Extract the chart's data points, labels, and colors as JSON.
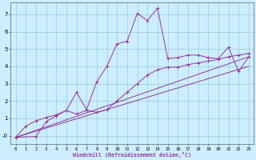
{
  "xlabel": "Windchill (Refroidissement éolien,°C)",
  "background_color": "#cceeff",
  "grid_color": "#99cccc",
  "line_color": "#993399",
  "xlim": [
    -0.5,
    23.5
  ],
  "ylim": [
    -0.5,
    7.7
  ],
  "xticks": [
    0,
    1,
    2,
    3,
    4,
    5,
    6,
    7,
    8,
    9,
    10,
    11,
    12,
    13,
    14,
    15,
    16,
    17,
    18,
    19,
    20,
    21,
    22,
    23
  ],
  "yticks": [
    0,
    1,
    2,
    3,
    4,
    5,
    6,
    7
  ],
  "ytick_labels": [
    "-0",
    "1",
    "2",
    "3",
    "4",
    "5",
    "6",
    "7"
  ],
  "line1_x": [
    0,
    1,
    2,
    3,
    4,
    5,
    6,
    7,
    8,
    9,
    10,
    11,
    12,
    13,
    14,
    15,
    16,
    17,
    18,
    19,
    20,
    21,
    22,
    23
  ],
  "line1_y": [
    -0.1,
    0.55,
    0.85,
    1.05,
    1.2,
    1.45,
    2.5,
    1.5,
    3.1,
    4.0,
    5.3,
    5.45,
    7.05,
    6.65,
    7.35,
    4.45,
    4.5,
    4.65,
    4.65,
    4.5,
    4.45,
    5.1,
    3.7,
    4.55
  ],
  "line2_x": [
    0,
    2,
    3,
    4,
    5,
    6,
    7,
    8,
    9,
    10,
    11,
    12,
    13,
    14,
    15,
    16,
    17,
    18,
    19,
    20,
    21,
    22,
    23
  ],
  "line2_y": [
    -0.1,
    -0.05,
    0.8,
    1.15,
    1.45,
    1.25,
    1.45,
    1.35,
    1.5,
    2.0,
    2.5,
    3.0,
    3.5,
    3.8,
    3.95,
    3.95,
    4.1,
    4.2,
    4.3,
    4.4,
    4.55,
    4.65,
    4.75
  ],
  "line3_x": [
    0,
    23
  ],
  "line3_y": [
    -0.1,
    4.55
  ],
  "line4_x": [
    0,
    23
  ],
  "line4_y": [
    -0.1,
    4.0
  ]
}
